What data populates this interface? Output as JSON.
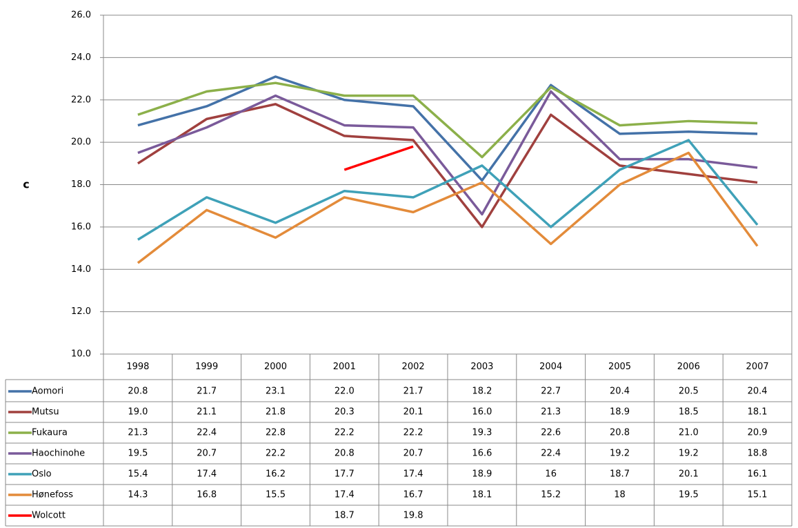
{
  "chart_data": {
    "type": "line",
    "y_label": "c",
    "categories": [
      "1998",
      "1999",
      "2000",
      "2001",
      "2002",
      "2003",
      "2004",
      "2005",
      "2006",
      "2007"
    ],
    "ylim": [
      10,
      26
    ],
    "yticks": [
      {
        "value": 10,
        "label": "10.0"
      },
      {
        "value": 12,
        "label": "12.0"
      },
      {
        "value": 14,
        "label": "14.0"
      },
      {
        "value": 16,
        "label": "16.0"
      },
      {
        "value": 18,
        "label": "18.0"
      },
      {
        "value": 20,
        "label": "20.0"
      },
      {
        "value": 22,
        "label": "22.0"
      },
      {
        "value": 24,
        "label": "24.0"
      },
      {
        "value": 26,
        "label": "26.0"
      }
    ],
    "grid": true,
    "series": [
      {
        "name": "Aomori",
        "color": "#4472a8",
        "values": [
          20.8,
          21.7,
          23.1,
          22.0,
          21.7,
          18.2,
          22.7,
          20.4,
          20.5,
          20.4
        ],
        "value_labels": [
          "20.8",
          "21.7",
          "23.1",
          "22.0",
          "21.7",
          "18.2",
          "22.7",
          "20.4",
          "20.5",
          "20.4"
        ]
      },
      {
        "name": "Mutsu",
        "color": "#a0403e",
        "values": [
          19.0,
          21.1,
          21.8,
          20.3,
          20.1,
          16.0,
          21.3,
          18.9,
          18.5,
          18.1
        ],
        "value_labels": [
          "19.0",
          "21.1",
          "21.8",
          "20.3",
          "20.1",
          "16.0",
          "21.3",
          "18.9",
          "18.5",
          "18.1"
        ]
      },
      {
        "name": "Fukaura",
        "color": "#8cb04a",
        "values": [
          21.3,
          22.4,
          22.8,
          22.2,
          22.2,
          19.3,
          22.6,
          20.8,
          21.0,
          20.9
        ],
        "value_labels": [
          "21.3",
          "22.4",
          "22.8",
          "22.2",
          "22.2",
          "19.3",
          "22.6",
          "20.8",
          "21.0",
          "20.9"
        ]
      },
      {
        "name": "Haochinohe",
        "color": "#7a5a9a",
        "values": [
          19.5,
          20.7,
          22.2,
          20.8,
          20.7,
          16.6,
          22.4,
          19.2,
          19.2,
          18.8
        ],
        "value_labels": [
          "19.5",
          "20.7",
          "22.2",
          "20.8",
          "20.7",
          "16.6",
          "22.4",
          "19.2",
          "19.2",
          "18.8"
        ]
      },
      {
        "name": "Oslo",
        "color": "#3fa1b8",
        "values": [
          15.4,
          17.4,
          16.2,
          17.7,
          17.4,
          18.9,
          16,
          18.7,
          20.1,
          16.1
        ],
        "value_labels": [
          "15.4",
          "17.4",
          "16.2",
          "17.7",
          "17.4",
          "18.9",
          "16",
          "18.7",
          "20.1",
          "16.1"
        ]
      },
      {
        "name": "Hønefoss",
        "color": "#e38b3a",
        "values": [
          14.3,
          16.8,
          15.5,
          17.4,
          16.7,
          18.1,
          15.2,
          18,
          19.5,
          15.1
        ],
        "value_labels": [
          "14.3",
          "16.8",
          "15.5",
          "17.4",
          "16.7",
          "18.1",
          "15.2",
          "18",
          "19.5",
          "15.1"
        ]
      },
      {
        "name": "Wolcott",
        "color": "#ff0000",
        "values": [
          null,
          null,
          null,
          18.7,
          19.8,
          null,
          null,
          null,
          null,
          null
        ],
        "value_labels": [
          null,
          null,
          null,
          "18.7",
          "19.8",
          null,
          null,
          null,
          null,
          null
        ]
      }
    ]
  }
}
